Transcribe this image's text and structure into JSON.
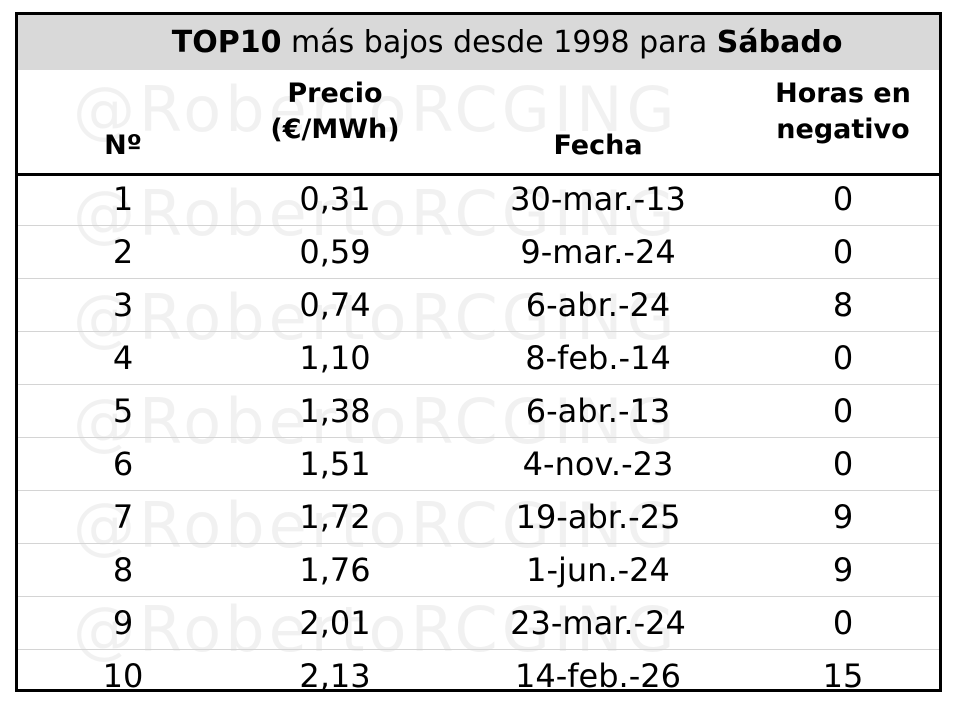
{
  "title": {
    "bold_prefix": "TOP10",
    "middle": " más bajos desde 1998 para ",
    "bold_suffix": "Sábado"
  },
  "watermark": "@RobertoRCGING",
  "columns": {
    "num": "Nº",
    "price_line1": "Precio",
    "price_line2": "(€/MWh)",
    "date": "Fecha",
    "neg_line1": "Horas en",
    "neg_line2": "negativo"
  },
  "rows": [
    {
      "num": "1",
      "price": "0,31",
      "date": "30-mar.-13",
      "neg": "0"
    },
    {
      "num": "2",
      "price": "0,59",
      "date": "9-mar.-24",
      "neg": "0"
    },
    {
      "num": "3",
      "price": "0,74",
      "date": "6-abr.-24",
      "neg": "8"
    },
    {
      "num": "4",
      "price": "1,10",
      "date": "8-feb.-14",
      "neg": "0"
    },
    {
      "num": "5",
      "price": "1,38",
      "date": "6-abr.-13",
      "neg": "0"
    },
    {
      "num": "6",
      "price": "1,51",
      "date": "4-nov.-23",
      "neg": "0"
    },
    {
      "num": "7",
      "price": "1,72",
      "date": "19-abr.-25",
      "neg": "9"
    },
    {
      "num": "8",
      "price": "1,76",
      "date": "1-jun.-24",
      "neg": "9"
    },
    {
      "num": "9",
      "price": "2,01",
      "date": "23-mar.-24",
      "neg": "0"
    },
    {
      "num": "10",
      "price": "2,13",
      "date": "14-feb.-26",
      "neg": "15"
    }
  ]
}
